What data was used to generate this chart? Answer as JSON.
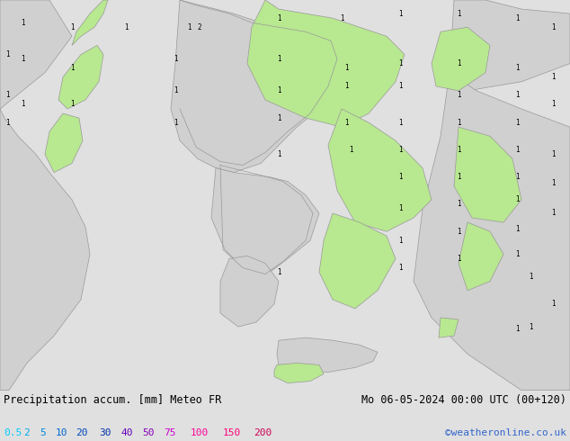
{
  "title_left": "Precipitation accum. [mm] Meteo FR",
  "title_right": "Mo 06-05-2024 00:00 UTC (00+120)",
  "credit": "©weatheronline.co.uk",
  "legend_values": [
    "0.5",
    "2",
    "5",
    "10",
    "20",
    "30",
    "40",
    "50",
    "75",
    "100",
    "150",
    "200"
  ],
  "legend_colors": [
    "#00ccff",
    "#00aaee",
    "#0088dd",
    "#0066cc",
    "#0044bb",
    "#0033aa",
    "#6600bb",
    "#8800bb",
    "#cc00cc",
    "#ff0099",
    "#ff0077",
    "#cc0055"
  ],
  "sea_color": "#aaeeff",
  "land_gray": "#d0d0d0",
  "land_green": "#b8e890",
  "border_color": "#999999",
  "fig_width": 6.34,
  "fig_height": 4.9,
  "dpi": 100,
  "bar_height": 0.115,
  "bar_bg": "#e0e0e0"
}
